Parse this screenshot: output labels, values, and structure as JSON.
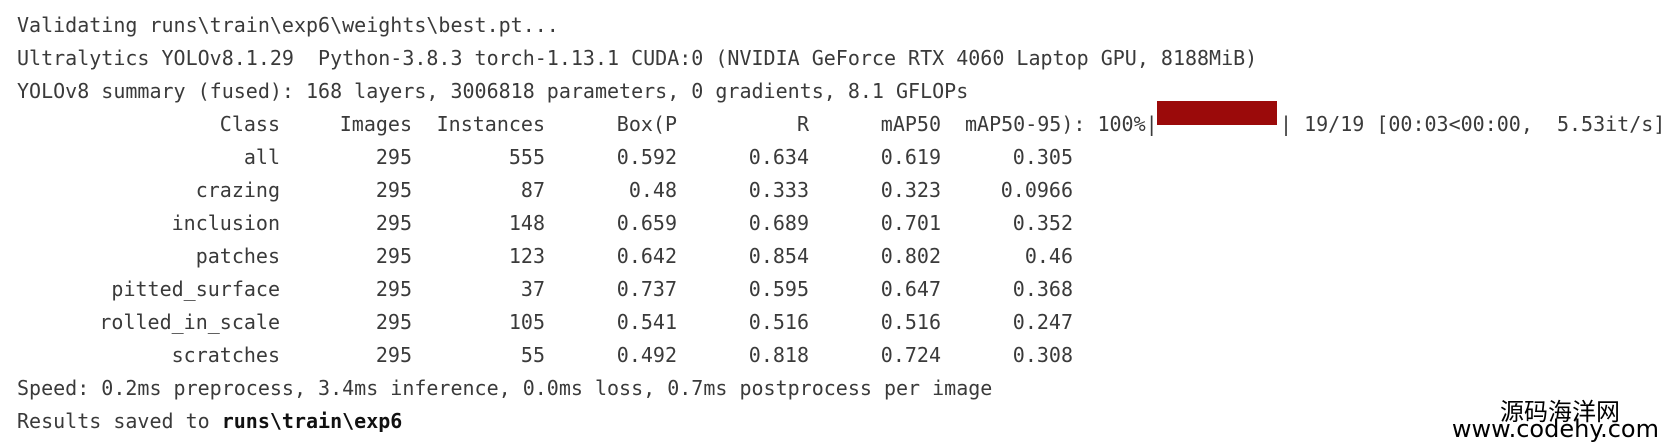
{
  "lines": [
    "Validating runs\\train\\exp6\\weights\\best.pt...",
    "Ultralytics YOLOv8.1.29  Python-3.8.3 torch-1.13.1 CUDA:0 (NVIDIA GeForce RTX 4060 Laptop GPU, 8188MiB)",
    "YOLOv8 summary (fused): 168 layers, 3006818 parameters, 0 gradients, 8.1 GFLOPs"
  ],
  "table": {
    "header": [
      "Class",
      "Images",
      "Instances",
      "Box(P",
      "R",
      "mAP50",
      "mAP50-95): 100%|"
    ],
    "progress_tail": "| 19/19 [00:03<00:00,  5.53it/s]",
    "rows": [
      [
        "all",
        "295",
        "555",
        "0.592",
        "0.634",
        "0.619",
        "0.305"
      ],
      [
        "crazing",
        "295",
        "87",
        "0.48",
        "0.333",
        "0.323",
        "0.0966"
      ],
      [
        "inclusion",
        "295",
        "148",
        "0.659",
        "0.689",
        "0.701",
        "0.352"
      ],
      [
        "patches",
        "295",
        "123",
        "0.642",
        "0.854",
        "0.802",
        "0.46"
      ],
      [
        "pitted_surface",
        "295",
        "37",
        "0.737",
        "0.595",
        "0.647",
        "0.368"
      ],
      [
        "rolled_in_scale",
        "295",
        "105",
        "0.541",
        "0.516",
        "0.516",
        "0.247"
      ],
      [
        "scratches",
        "295",
        "55",
        "0.492",
        "0.818",
        "0.724",
        "0.308"
      ]
    ]
  },
  "speed": "Speed: 0.2ms preprocess, 3.4ms inference, 0.0ms loss, 0.7ms postprocess per image",
  "results": {
    "prefix": "Results saved to ",
    "path": "runs\\train\\exp6"
  },
  "watermark": {
    "name": "源码海洋网",
    "url": "www.codehy.com"
  }
}
